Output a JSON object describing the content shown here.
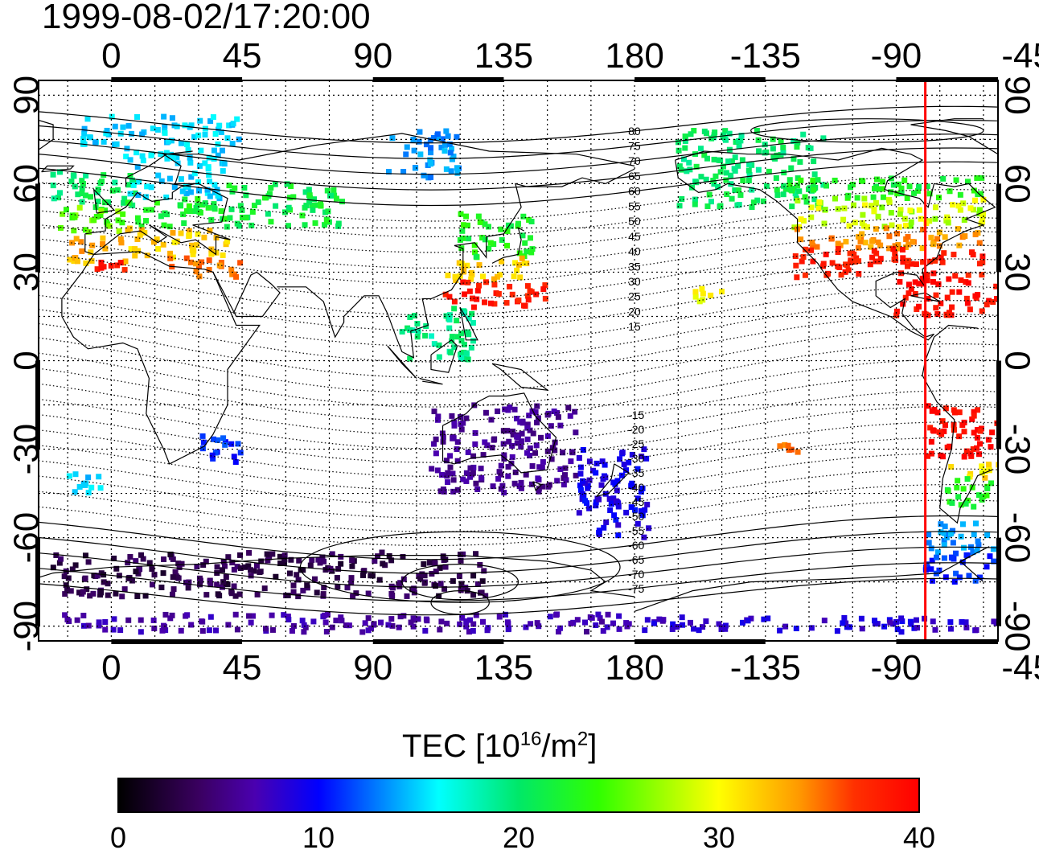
{
  "timestamp": "1999-08-02/17:20:00",
  "map": {
    "projection": "equirectangular",
    "lon_range": [
      -25,
      305
    ],
    "lat_range": [
      -95,
      95
    ],
    "top_lon_labels": [
      "0",
      "45",
      "90",
      "135",
      "180",
      "-135",
      "-90",
      "-45"
    ],
    "bottom_lon_labels": [
      "0",
      "45",
      "90",
      "135",
      "180",
      "-135",
      "-90",
      "-45"
    ],
    "left_lat_labels": [
      "90",
      "60",
      "30",
      "0",
      "-30",
      "-60",
      "-90"
    ],
    "right_lat_labels": [
      "90",
      "60",
      "30",
      "0",
      "-30",
      "-60",
      "-90"
    ],
    "north_mlat_labels": [
      "80",
      "75",
      "70",
      "65",
      "60",
      "55",
      "50",
      "45",
      "40",
      "35",
      "30",
      "25",
      "20",
      "15"
    ],
    "south_mlat_labels": [
      "-15",
      "-20",
      "-25",
      "-30",
      "-35",
      "-40",
      "-45",
      "-50",
      "-55",
      "-60",
      "-65",
      "-70",
      "-75"
    ],
    "grid": "dotted",
    "terminator_longitude": -80,
    "terminator_color": "#ff0000",
    "coastline_color": "#000000"
  },
  "colorbar": {
    "title_prefix": "TEC  [10",
    "title_exp1": "16",
    "title_mid": "/m",
    "title_exp2": "2",
    "title_suffix": "]",
    "min": 0,
    "max": 40,
    "tick_labels": [
      "0",
      "10",
      "20",
      "30",
      "40"
    ],
    "colors": [
      "#000000",
      "#3a0060",
      "#4a00b0",
      "#0000ff",
      "#0088ff",
      "#00ffff",
      "#00e868",
      "#30ff00",
      "#ffff00",
      "#ff9a00",
      "#ff3000",
      "#ff0000"
    ]
  },
  "chart_data": {
    "type": "heatmap",
    "value_name": "TEC",
    "value_range": [
      0,
      40
    ],
    "x_unit": "geographic longitude (deg)",
    "y_unit": "geographic latitude (deg)",
    "regions": [
      {
        "lon": [
          -20,
          10
        ],
        "lat": [
          52,
          64
        ],
        "tec": 22
      },
      {
        "lon": [
          -18,
          5
        ],
        "lat": [
          42,
          52
        ],
        "tec": 26
      },
      {
        "lon": [
          -15,
          5
        ],
        "lat": [
          33,
          42
        ],
        "tec": 32
      },
      {
        "lon": [
          -10,
          5
        ],
        "lat": [
          29,
          34
        ],
        "tec": 38
      },
      {
        "lon": [
          5,
          40
        ],
        "lat": [
          55,
          72
        ],
        "tec": 17
      },
      {
        "lon": [
          5,
          40
        ],
        "lat": [
          45,
          55
        ],
        "tec": 24
      },
      {
        "lon": [
          5,
          40
        ],
        "lat": [
          35,
          45
        ],
        "tec": 31
      },
      {
        "lon": [
          20,
          45
        ],
        "lat": [
          28,
          35
        ],
        "tec": 34
      },
      {
        "lon": [
          -10,
          45
        ],
        "lat": [
          73,
          83
        ],
        "tec": 17
      },
      {
        "lon": [
          40,
          80
        ],
        "lat": [
          45,
          60
        ],
        "tec": 23
      },
      {
        "lon": [
          95,
          120
        ],
        "lat": [
          62,
          78
        ],
        "tec": 15
      },
      {
        "lon": [
          120,
          145
        ],
        "lat": [
          35,
          50
        ],
        "tec": 24
      },
      {
        "lon": [
          115,
          145
        ],
        "lat": [
          27,
          35
        ],
        "tec": 31
      },
      {
        "lon": [
          115,
          150
        ],
        "lat": [
          18,
          27
        ],
        "tec": 38
      },
      {
        "lon": [
          100,
          125
        ],
        "lat": [
          0,
          18
        ],
        "tec": 21
      },
      {
        "lon": [
          30,
          45
        ],
        "lat": [
          -35,
          -25
        ],
        "tec": 12
      },
      {
        "lon": [
          -15,
          0
        ],
        "lat": [
          -45,
          -38
        ],
        "tec": 17
      },
      {
        "lon": [
          110,
          160
        ],
        "lat": [
          -45,
          -15
        ],
        "tec": 6
      },
      {
        "lon": [
          160,
          185
        ],
        "lat": [
          -60,
          -30
        ],
        "tec": 10
      },
      {
        "lon": [
          -20,
          130
        ],
        "lat": [
          -80,
          -65
        ],
        "tec": 3
      },
      {
        "lon": [
          -20,
          190
        ],
        "lat": [
          -92,
          -86
        ],
        "tec": 7
      },
      {
        "lon": [
          195,
          245
        ],
        "lat": [
          52,
          78
        ],
        "tec": 22
      },
      {
        "lon": [
          230,
          300
        ],
        "lat": [
          55,
          62
        ],
        "tec": 24
      },
      {
        "lon": [
          235,
          300
        ],
        "lat": [
          45,
          55
        ],
        "tec": 28
      },
      {
        "lon": [
          235,
          300
        ],
        "lat": [
          38,
          45
        ],
        "tec": 33
      },
      {
        "lon": [
          235,
          300
        ],
        "lat": [
          28,
          38
        ],
        "tec": 38
      },
      {
        "lon": [
          270,
          305
        ],
        "lat": [
          15,
          28
        ],
        "tec": 39
      },
      {
        "lon": [
          280,
          315
        ],
        "lat": [
          -35,
          -15
        ],
        "tec": 39
      },
      {
        "lon": [
          285,
          310
        ],
        "lat": [
          -40,
          -35
        ],
        "tec": 30
      },
      {
        "lon": [
          285,
          310
        ],
        "lat": [
          -50,
          -40
        ],
        "tec": 24
      },
      {
        "lon": [
          280,
          305
        ],
        "lat": [
          -65,
          -55
        ],
        "tec": 15
      },
      {
        "lon": [
          280,
          305
        ],
        "lat": [
          -75,
          -65
        ],
        "tec": 12
      },
      {
        "lon": [
          180,
          305
        ],
        "lat": [
          -92,
          -87
        ],
        "tec": 9
      },
      {
        "lon": [
          200,
          210
        ],
        "lat": [
          18,
          25
        ],
        "tec": 29
      },
      {
        "lon": [
          230,
          240
        ],
        "lat": [
          -32,
          -28
        ],
        "tec": 34
      }
    ]
  }
}
